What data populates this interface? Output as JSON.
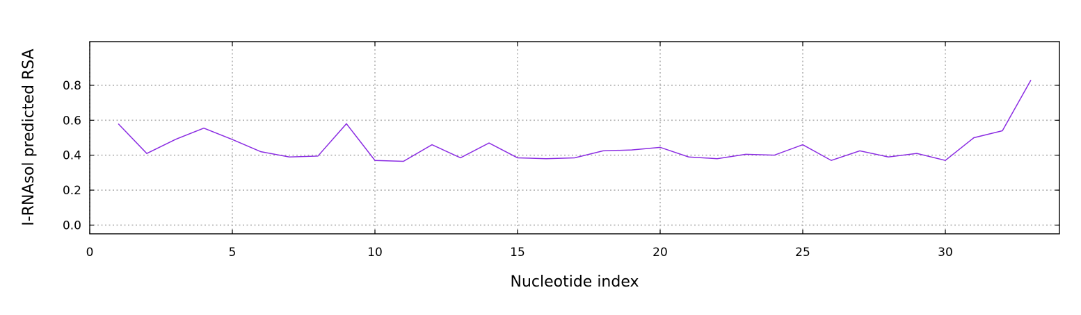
{
  "chart_data": {
    "type": "line",
    "title": "",
    "xlabel": "Nucleotide index",
    "ylabel": "I-RNAsol predicted RSA",
    "xlim": [
      0,
      34
    ],
    "ylim": [
      -0.05,
      1.05
    ],
    "xticks": [
      0,
      5,
      10,
      15,
      20,
      25,
      30
    ],
    "xtick_labels": [
      "0",
      "5",
      "10",
      "15",
      "20",
      "25",
      "30"
    ],
    "yticks": [
      0.0,
      0.2,
      0.4,
      0.6,
      0.8
    ],
    "ytick_labels": [
      "0.0",
      "0.2",
      "0.4",
      "0.6",
      "0.8"
    ],
    "grid": true,
    "grid_style": "dotted",
    "tick_direction": "in",
    "legend": "none",
    "series": [
      {
        "color": "#8a2be2",
        "x": [
          1,
          2,
          3,
          4,
          5,
          6,
          7,
          8,
          9,
          10,
          11,
          12,
          13,
          14,
          15,
          16,
          17,
          18,
          19,
          20,
          21,
          22,
          23,
          24,
          25,
          26,
          27,
          28,
          29,
          30,
          31,
          32,
          33
        ],
        "values": [
          0.58,
          0.41,
          0.49,
          0.555,
          0.49,
          0.42,
          0.39,
          0.395,
          0.58,
          0.37,
          0.365,
          0.46,
          0.385,
          0.47,
          0.385,
          0.38,
          0.385,
          0.425,
          0.43,
          0.445,
          0.39,
          0.38,
          0.405,
          0.4,
          0.46,
          0.37,
          0.425,
          0.39,
          0.41,
          0.37,
          0.5,
          0.54,
          0.83
        ]
      }
    ]
  }
}
